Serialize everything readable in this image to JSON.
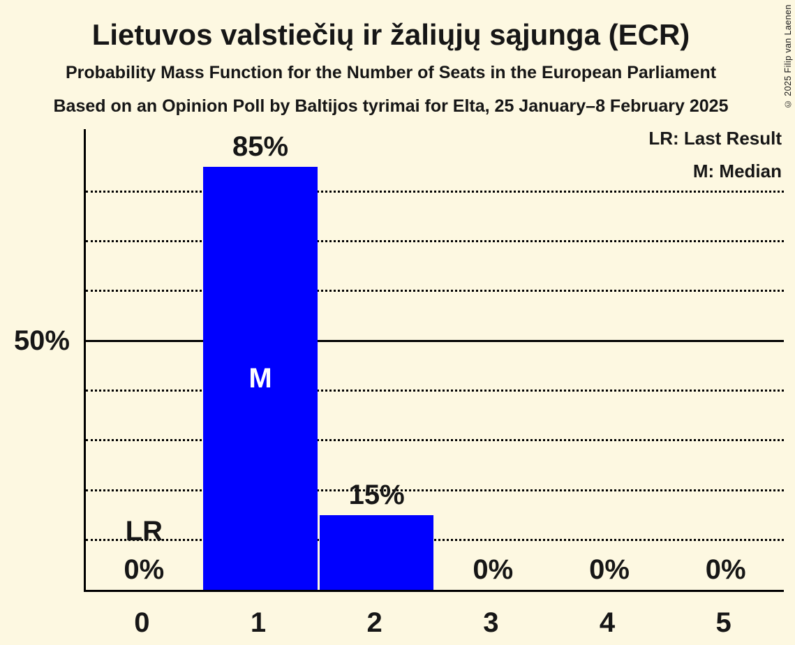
{
  "header": {
    "title": "Lietuvos valstiečių ir žaliųjų sąjunga (ECR)",
    "subtitle_line1": "Probability Mass Function for the Number of Seats in the European Parliament",
    "subtitle_line2": "Based on an Opinion Poll by Baltijos tyrimai for Elta, 25 January–8 February 2025"
  },
  "legend": {
    "last_result": "LR: Last Result",
    "median": "M: Median"
  },
  "copyright": "© 2025 Filip van Laenen",
  "colors": {
    "bg": "#fdf8e1",
    "bar": "#0000ff",
    "text": "#161616",
    "axis": "#000000",
    "median_label": "#ffffff"
  },
  "chart_data": {
    "type": "bar",
    "title": "Lietuvos valstiečių ir žaliųjų sąjunga (ECR)",
    "subtitle": "Probability Mass Function for the Number of Seats in the European Parliament",
    "categories": [
      "0",
      "1",
      "2",
      "3",
      "4",
      "5"
    ],
    "values": [
      0,
      85,
      15,
      0,
      0,
      0
    ],
    "value_labels": [
      "0%",
      "85%",
      "15%",
      "0%",
      "0%",
      "0%"
    ],
    "ylim": [
      0,
      92.5
    ],
    "y_tick_label": "50%",
    "y_tick_percent": 50,
    "solid_gridline_percent": 50,
    "dotted_gridline_percents": [
      10,
      20,
      30,
      40,
      60,
      70,
      80
    ],
    "grid": "horizontal dotted every 10%, solid at 50%",
    "legend_position": "top-right",
    "median": {
      "category": "1",
      "marker": "M"
    },
    "last_result": {
      "category": "0",
      "marker": "LR"
    }
  }
}
